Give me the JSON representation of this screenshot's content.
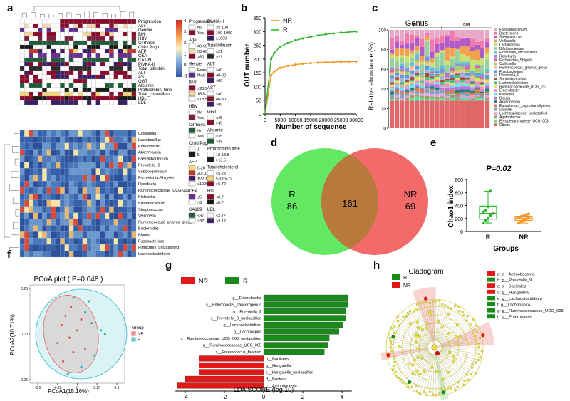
{
  "panel_letters": [
    "a",
    "b",
    "c",
    "d",
    "e",
    "f",
    "g",
    "h"
  ],
  "panel_a": {
    "row_labels": [
      "Progression",
      "Age",
      "Gender",
      "BMI",
      "HBV",
      "Cirrhosis",
      "Child Pugh",
      "AFP",
      "CEA",
      "CA199",
      "PIVKA-II",
      "Total_bilirubin",
      "ALT",
      "AST",
      "GGT",
      "Albumin",
      "Prothrombin_time",
      "Total_cholesterol",
      "HDL",
      "LDL"
    ],
    "genus_labels": [
      "Collinsella",
      "Lactobacillus",
      "Enterobacter",
      "Akkermansia",
      "Faecalibacterium",
      "Prevotella_9",
      "Subdoligranulum",
      "Escherichia-Shigella",
      "Roseburia",
      "Ruminococcaceae_UCG-013",
      "Klebsiella",
      "Bifidobacterium",
      "Streptococcus",
      "Veillonella",
      "Ruminococcus]_gnavus_group",
      "Bacteroides",
      "Blautia",
      "Fusobacterium",
      "Firmicutes_unclassified",
      "Lachnoclostridium"
    ],
    "scale_ticks": [
      "4",
      "3",
      "2",
      "1",
      "0",
      "-1"
    ],
    "legend_col1": [
      {
        "title": "Progression",
        "items": [
          {
            "label": "No",
            "color": "#ffffff"
          },
          {
            "label": "Yes",
            "color": "#8b0a2a"
          }
        ]
      },
      {
        "title": "Age",
        "items": [
          {
            "label": "40-50",
            "color": "#ffffff"
          },
          {
            "label": "50-60",
            "color": "#f0d8b0"
          },
          {
            "label": ">60",
            "color": "#8b0a2a"
          }
        ]
      },
      {
        "title": "Gender",
        "items": [
          {
            "label": "Female",
            "color": "#ffffff"
          },
          {
            "label": "Male",
            "color": "#5c2d91"
          }
        ]
      },
      {
        "title": "BMI",
        "items": [
          {
            "label": ">23.9",
            "color": "#8b0a2a"
          },
          {
            "label": "18.5-23.9",
            "color": "#f2d4a0"
          },
          {
            "label": "≤18.5",
            "color": "#ffffff"
          }
        ]
      },
      {
        "title": "HBV",
        "items": [
          {
            "label": "No",
            "color": "#ffffff"
          },
          {
            "label": "Yes",
            "color": "#7a1f3d"
          }
        ]
      },
      {
        "title": "Cirrhosis",
        "items": [
          {
            "label": "No",
            "color": "#1f5c3a"
          },
          {
            "label": "Yes",
            "color": "#ffffff"
          }
        ]
      },
      {
        "title": "Child.Pugh",
        "items": [
          {
            "label": "A",
            "color": "#ffffff"
          },
          {
            "label": "B",
            "color": "#1a1a1a"
          }
        ]
      },
      {
        "title": "AFP",
        "items": [
          {
            "label": "0-20",
            "color": "#f5d77a"
          },
          {
            "label": "20-100",
            "color": "#c0392b"
          },
          {
            "label": "100-1000",
            "color": "#3b1f66"
          },
          {
            "label": "≥1000",
            "color": "#ffffff"
          }
        ]
      },
      {
        "title": "CEA",
        "items": [
          {
            "label": "≤5",
            "color": "#6a2d91"
          },
          {
            "label": ">5",
            "color": "#ffffff"
          }
        ]
      },
      {
        "title": "CA199",
        "items": [
          {
            "label": "≤37",
            "color": "#1f5c3a"
          },
          {
            "label": ">37",
            "color": "#ffffff"
          }
        ]
      }
    ],
    "legend_col2": [
      {
        "title": "PIVKA-II",
        "items": [
          {
            "label": "32-100",
            "color": "#ffffff"
          },
          {
            "label": "100-1000",
            "color": "#8b0a2a"
          },
          {
            "label": "≥1000",
            "color": "#3b1f66"
          }
        ]
      },
      {
        "title": "Total bilirubin",
        "items": [
          {
            "label": "≤21",
            "color": "#ffffff"
          },
          {
            "label": ">21",
            "color": "#2b2b2b"
          }
        ]
      },
      {
        "title": "ALT",
        "items": [
          {
            "label": "≤40",
            "color": "#ffffff"
          },
          {
            "label": "40-80",
            "color": "#8b0a2a"
          },
          {
            "label": ">80",
            "color": "#3b1f66"
          }
        ]
      },
      {
        "title": "AST",
        "items": [
          {
            "label": "≤40",
            "color": "#ffffff"
          },
          {
            "label": "40-80",
            "color": "#8b0a2a"
          },
          {
            "label": ">80",
            "color": "#3b1f66"
          }
        ]
      },
      {
        "title": "GGT",
        "items": [
          {
            "label": "≤45",
            "color": "#ffffff"
          },
          {
            "label": ">45",
            "color": "#8b0a2a"
          }
        ]
      },
      {
        "title": "Albumin",
        "items": [
          {
            "label": "≤35",
            "color": "#ffffff"
          },
          {
            "label": ">35",
            "color": "#1f5c3a"
          }
        ]
      },
      {
        "title": "Prothrombin time",
        "items": [
          {
            "label": "10-13.5",
            "color": "#ffffff"
          },
          {
            "label": ">13.5",
            "color": "#1a1a1a"
          }
        ]
      },
      {
        "title": "Total cholesterol",
        "items": [
          {
            "label": "<5.23",
            "color": "#ffffff"
          },
          {
            "label": "5.23-5.72",
            "color": "#f5d77a"
          },
          {
            "label": ">5.72",
            "color": "#8b0a2a"
          }
        ]
      },
      {
        "title": "HDL",
        "items": [
          {
            "label": "<0.7",
            "color": "#8b0a2a"
          },
          {
            "label": "≥0.7",
            "color": "#1a1a1a"
          }
        ]
      },
      {
        "title": "LDL",
        "items": [
          {
            "label": "≤3.12",
            "color": "#ffffff"
          },
          {
            "label": ">3.12",
            "color": "#3b1f66"
          }
        ]
      }
    ]
  },
  "chart_data": [
    {
      "panel": "b",
      "type": "line",
      "ylabel": "OUT number",
      "xlabel": "Number of sequence",
      "xlim": [
        0,
        30000
      ],
      "ylim": [
        0,
        350
      ],
      "xticks": [
        0,
        5000,
        10000,
        15000,
        20000,
        25000,
        30000
      ],
      "yticks": [
        0,
        50,
        100,
        150,
        200,
        250,
        300,
        350
      ],
      "legend": "top-left",
      "series": [
        {
          "name": "NR",
          "color": "#f7931e",
          "x": [
            0,
            2000,
            3000,
            5000,
            7500,
            10000,
            12500,
            15000,
            17500,
            20000,
            22500,
            25000,
            27500,
            30000
          ],
          "values": [
            0,
            140,
            155,
            168,
            175,
            180,
            183,
            185,
            187,
            188,
            189,
            190,
            190,
            191
          ]
        },
        {
          "name": "R",
          "color": "#2bb52b",
          "x": [
            0,
            2000,
            3000,
            5000,
            7500,
            10000,
            12500,
            15000,
            17500,
            20000,
            22500,
            25000,
            27500,
            30000
          ],
          "values": [
            0,
            200,
            222,
            245,
            258,
            268,
            275,
            281,
            286,
            290,
            293,
            296,
            298,
            300
          ]
        }
      ]
    },
    {
      "panel": "c",
      "type": "bar",
      "title": "Genus",
      "ylabel": "Relative abundance (%)",
      "ylim": [
        0,
        100
      ],
      "yticks": [
        0,
        20,
        40,
        60,
        80,
        100
      ],
      "group_labels": [
        "R",
        "NR"
      ],
      "legend": [
        "Faecalibacterium",
        "Bacteroides",
        "Streptococcus",
        "Veillonella",
        "Lactobacillus",
        "Bifidobacterium",
        "Firmicutes_unclassified",
        "Roseburia",
        "Escherichia_Shigella",
        "Collinsella",
        "Ruminococcus_gnavus_group",
        "Fusobacterium",
        "Prevotella_9",
        "Subdoligranulum",
        "Lachnoclostridium",
        "Ruminococcaceae_UCG_013",
        "Enterobacter",
        "Klebsiella",
        "Blautia",
        "Akkermansia",
        "Eubacterium_coprostanoligenes",
        "Dialister",
        "Lachnospiraceae_unclassified",
        "Agathobacter",
        "Erysipelotrichaceae_UCG_003",
        "Others"
      ],
      "colors": [
        "#e8a8c8",
        "#f07ab0",
        "#b05cc8",
        "#f0a050",
        "#c8e070",
        "#9ad0a0",
        "#60c0d0",
        "#8090e0",
        "#e060a0",
        "#a0d060",
        "#f0c0a0",
        "#50a0e0",
        "#b0b0e0",
        "#a05040",
        "#50c080",
        "#e0e060",
        "#f090c0",
        "#70e0e0",
        "#c070e0",
        "#208080",
        "#d08040",
        "#80a0c0",
        "#e0a0e0",
        "#a0a060",
        "#60e0a0",
        "#e06868"
      ]
    },
    {
      "panel": "d",
      "type": "venn",
      "sets": [
        {
          "name": "R",
          "unique": 86,
          "color": "#60e860"
        },
        {
          "name": "NR",
          "unique": 69,
          "color": "#f06868"
        }
      ],
      "overlap": 161
    },
    {
      "panel": "e",
      "type": "box",
      "pvalue": "P=0.02",
      "ylabel": "Chao1 index",
      "xlabel": "Groups",
      "ylim": [
        0,
        800
      ],
      "yticks": [
        0,
        200,
        400,
        600,
        800
      ],
      "categories": [
        "R",
        "NR"
      ],
      "series": [
        {
          "name": "R",
          "color": "#2bb52b",
          "min": 130,
          "q1": 190,
          "median": 280,
          "q3": 390,
          "max": 620,
          "points": [
            130,
            170,
            210,
            250,
            280,
            300,
            330,
            380,
            620
          ]
        },
        {
          "name": "NR",
          "color": "#f7931e",
          "min": 130,
          "q1": 170,
          "median": 205,
          "q3": 235,
          "max": 270,
          "points": [
            130,
            150,
            170,
            190,
            205,
            215,
            230,
            240,
            255,
            270
          ]
        }
      ]
    },
    {
      "panel": "f",
      "type": "scatter",
      "title": "PCoA plot ( P=0.048 )",
      "xlabel": "PCoA1(15.16%)",
      "ylabel": "PCoA2(10.71%)",
      "xlim": [
        -0.6,
        0.6
      ],
      "ylim": [
        -0.27,
        0.27
      ],
      "xticks": [
        -0.5,
        -0.25,
        0,
        0.25,
        0.5
      ],
      "ytick_labels": [
        "0.25",
        "0.00",
        "-0.25"
      ],
      "yticks": [
        0.25,
        0,
        -0.25
      ],
      "legend_title": "Group",
      "series": [
        {
          "name": "NR",
          "color": "#e84a4a",
          "x": [
            -0.15,
            -0.2,
            -0.1,
            0.05,
            -0.05,
            -0.25,
            -0.08,
            0.1,
            -0.18,
            0.0
          ],
          "y": [
            0.1,
            0.05,
            -0.02,
            0.08,
            -0.1,
            -0.05,
            0.15,
            -0.08,
            -0.15,
            0.02
          ]
        },
        {
          "name": "R",
          "color": "#20b0b0",
          "x": [
            0.15,
            0.3,
            0.35,
            0.22,
            0.1,
            -0.05,
            0.05,
            0.18,
            -0.12
          ],
          "y": [
            0.18,
            0.02,
            0.0,
            -0.12,
            0.12,
            0.2,
            -0.18,
            0.06,
            -0.22
          ]
        }
      ]
    },
    {
      "panel": "g",
      "type": "bar",
      "orientation": "horizontal",
      "xlabel": "LDA SCORE (log 10)",
      "xlim": [
        -4.5,
        4.5
      ],
      "xticks": [
        -4,
        -2,
        0,
        2,
        4
      ],
      "legend": [
        {
          "name": "NR",
          "color": "#e01818"
        },
        {
          "name": "R",
          "color": "#1a8a1a"
        }
      ],
      "categories": [
        "g__Enterobacter",
        "s__Enterobacter_cancerogenus",
        "g__Prevotella_9",
        "s__Prevotella_9_unclassified",
        "g__Lachnoclostridium",
        "g__Lachnospira",
        "s__Ruminococcaceae_UCG_005_unclassified",
        "g__Ruminococcaceae_UCG_005",
        "s__Enterococcus_faecium",
        "o__Bacillales",
        "g__Hungatella",
        "s__Hungatella_unclassified",
        "d__Bacteria",
        "c__Actinobacteria"
      ],
      "values": [
        4.3,
        4.3,
        4.2,
        4.2,
        4.05,
        3.85,
        3.35,
        3.3,
        3.1,
        -3.3,
        -3.3,
        -3.3,
        -4.0,
        -4.4
      ],
      "groups": [
        "R",
        "R",
        "R",
        "R",
        "R",
        "R",
        "R",
        "R",
        "R",
        "NR",
        "NR",
        "NR",
        "NR",
        "NR"
      ]
    }
  ],
  "panel_h": {
    "title": "Cladogram",
    "legend": [
      {
        "name": "R",
        "color": "#1a8a1a"
      },
      {
        "name": "NR",
        "color": "#e01818"
      }
    ],
    "taxa": [
      {
        "label": "a: c__Actinobacteria",
        "color": "#e01818"
      },
      {
        "label": "b: g__Prevotella_9",
        "color": "#1a8a1a"
      },
      {
        "label": "c: o__Bacillales",
        "color": "#e01818"
      },
      {
        "label": "d: g__Hungatella",
        "color": "#e01818"
      },
      {
        "label": "e: g__Lachnoclostridium",
        "color": "#1a8a1a"
      },
      {
        "label": "f: g__Lachnospira",
        "color": "#1a8a1a"
      },
      {
        "label": "g: g__Ruminococcaceae_UCG_005",
        "color": "#1a8a1a"
      },
      {
        "label": "h: g__Enterobacter",
        "color": "#1a8a1a"
      }
    ]
  }
}
